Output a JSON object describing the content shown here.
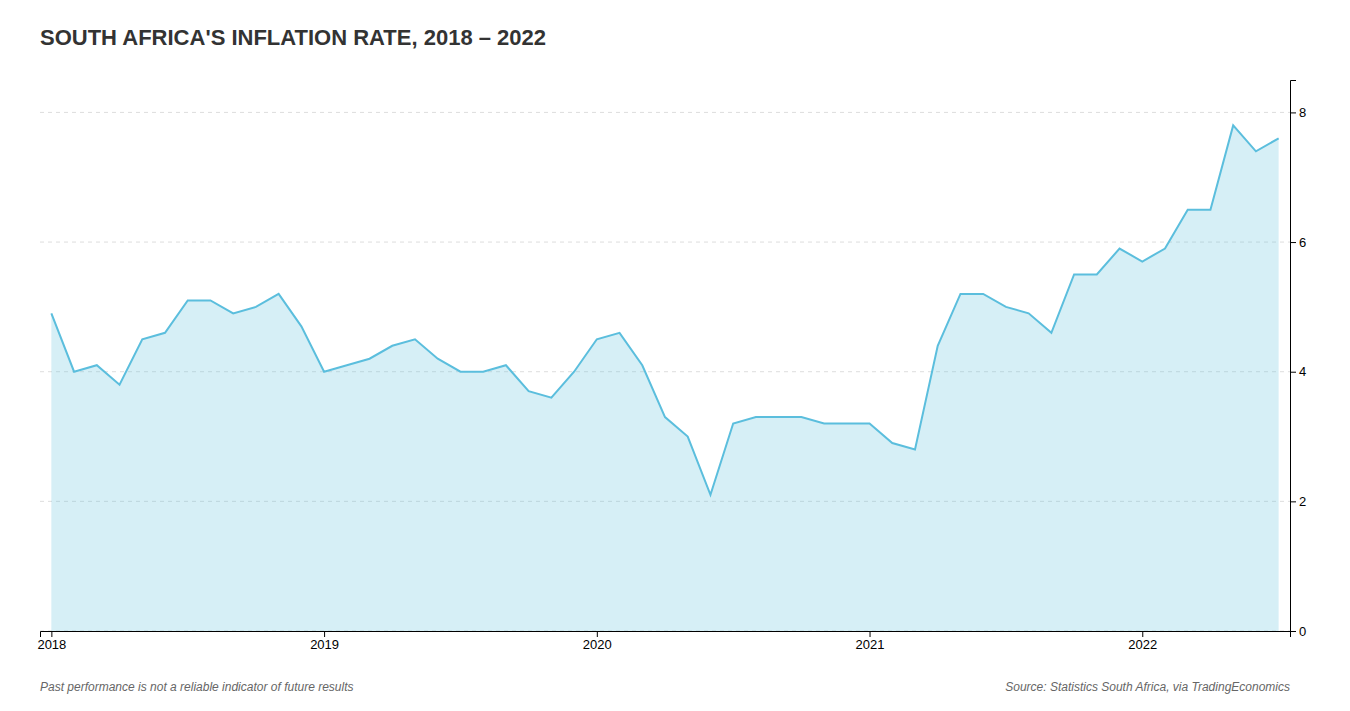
{
  "chart_data": {
    "type": "area",
    "title": "SOUTH AFRICA'S INFLATION RATE, 2018 – 2022",
    "annotations": [
      "Past performance is not a reliable indicator of future results",
      "Source: Statistics South Africa, via TradingEconomics"
    ],
    "categories": [
      "2018",
      null,
      null,
      null,
      null,
      null,
      null,
      null,
      null,
      null,
      null,
      null,
      "2019",
      null,
      null,
      null,
      null,
      null,
      null,
      null,
      null,
      null,
      null,
      null,
      "2020",
      null,
      null,
      null,
      null,
      null,
      null,
      null,
      null,
      null,
      null,
      null,
      "2021",
      null,
      null,
      null,
      null,
      null,
      null,
      null,
      null,
      null,
      null,
      null,
      "2022",
      null,
      null,
      null,
      null,
      null,
      null
    ],
    "values": [
      4.9,
      4.0,
      4.1,
      3.8,
      4.5,
      4.6,
      5.1,
      5.1,
      4.9,
      5.0,
      5.2,
      4.7,
      4.0,
      4.1,
      4.2,
      4.4,
      4.5,
      4.2,
      4.0,
      4.0,
      4.1,
      3.7,
      3.6,
      4.0,
      4.5,
      4.6,
      4.1,
      3.3,
      3.0,
      2.1,
      3.2,
      3.3,
      3.3,
      3.3,
      3.2,
      3.2,
      3.2,
      2.9,
      2.8,
      4.4,
      5.2,
      5.2,
      5.0,
      4.9,
      4.6,
      5.5,
      5.5,
      5.9,
      5.7,
      5.9,
      6.5,
      6.5,
      7.8,
      7.4,
      7.6
    ],
    "color": "#5BBEDD",
    "ylim": [
      0,
      8.5
    ],
    "yticks": [
      0,
      2,
      4,
      6,
      8
    ],
    "grid": true
  }
}
